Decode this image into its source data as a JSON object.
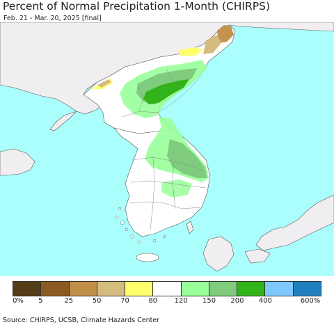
{
  "title": "Percent of Normal Precipitation 1-Month (CHIRPS)",
  "subtitle": "Feb. 21 - Mar. 20, 2025 [final]",
  "source": "Source: CHIRPS, UCSB, Climate Hazards Center",
  "colors": {
    "ocean": "#aafffd",
    "foreign_land": "#f0eef0",
    "land_white": "#ffffff",
    "border": "#555555"
  },
  "legend": {
    "colors": [
      "#553d17",
      "#8c5a22",
      "#c08e47",
      "#d4bc7f",
      "#ffff6e",
      "#ffffff",
      "#99ff99",
      "#7fcc7f",
      "#33b31a",
      "#7fc7ff",
      "#1f7fbf"
    ],
    "labels": [
      "0%",
      "5",
      "25",
      "50",
      "70",
      "80",
      "120",
      "150",
      "200",
      "400",
      "600%"
    ]
  }
}
